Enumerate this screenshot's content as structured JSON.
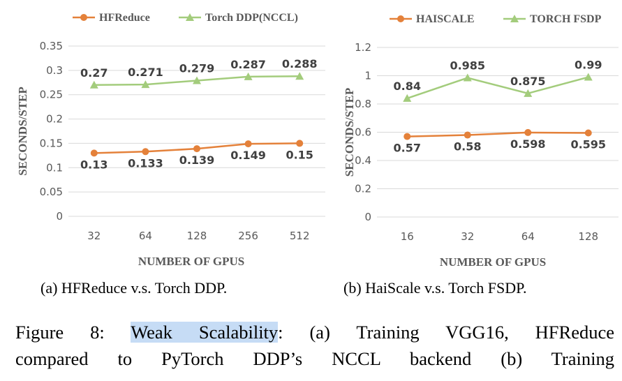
{
  "colors": {
    "series_orange": "#e4813a",
    "series_green": "#a3cc7c",
    "grid": "#d9d9d9",
    "text": "#595959",
    "highlight": "#c6dcf5"
  },
  "chart_data": [
    {
      "type": "line",
      "x_categories": [
        "32",
        "64",
        "128",
        "256",
        "512"
      ],
      "xlabel": "NUMBER OF GPUS",
      "ylabel": "SECONDS/STEP",
      "ylim": [
        0,
        0.35
      ],
      "yticks": [
        "0",
        "0.05",
        "0.1",
        "0.15",
        "0.2",
        "0.25",
        "0.3",
        "0.35"
      ],
      "grid": true,
      "legend_position": "top",
      "series": [
        {
          "name": "HFReduce",
          "marker": "circle",
          "color": "#e4813a",
          "values": [
            0.13,
            0.133,
            0.139,
            0.149,
            0.15
          ],
          "labels": [
            "0.13",
            "0.133",
            "0.139",
            "0.149",
            "0.15"
          ]
        },
        {
          "name": "Torch DDP(NCCL)",
          "marker": "triangle",
          "color": "#a3cc7c",
          "values": [
            0.27,
            0.271,
            0.279,
            0.287,
            0.288
          ],
          "labels": [
            "0.27",
            "0.271",
            "0.279",
            "0.287",
            "0.288"
          ]
        }
      ]
    },
    {
      "type": "line",
      "x_categories": [
        "16",
        "32",
        "64",
        "128"
      ],
      "xlabel": "NUMBER OF GPUS",
      "ylabel": "SECONDS/STEP",
      "ylim": [
        0,
        1.2
      ],
      "yticks": [
        "0",
        "0.2",
        "0.4",
        "0.6",
        "0.8",
        "1",
        "1.2"
      ],
      "grid": true,
      "legend_position": "top",
      "series": [
        {
          "name": "HAISCALE",
          "marker": "circle",
          "color": "#e4813a",
          "values": [
            0.57,
            0.58,
            0.598,
            0.595
          ],
          "labels": [
            "0.57",
            "0.58",
            "0.598",
            "0.595"
          ]
        },
        {
          "name": "TORCH FSDP",
          "marker": "triangle",
          "color": "#a3cc7c",
          "values": [
            0.84,
            0.985,
            0.875,
            0.99
          ],
          "labels": [
            "0.84",
            "0.985",
            "0.875",
            "0.99"
          ]
        }
      ]
    }
  ],
  "captions": {
    "a": "(a) HFReduce v.s. Torch DDP.",
    "b": "(b) HaiScale v.s. Torch FSDP."
  },
  "figure_caption": {
    "line1_prefix": "Figure 8: ",
    "line1_highlight": "Weak Scalability",
    "line1_rest": ": (a) Training VGG16, HFReduce",
    "line2": "compared to PyTorch DDP’s NCCL backend (b) Training"
  }
}
